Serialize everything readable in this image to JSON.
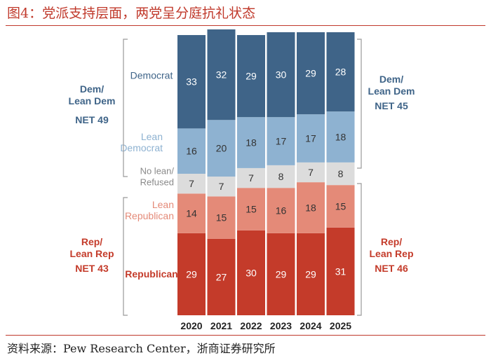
{
  "figure_title": "图4：党派支持层面，两党呈分庭抗礼状态",
  "source": "资料来源：Pew Research Center，浙商证券研究所",
  "colors": {
    "democrat": "#3f6488",
    "lean_democrat": "#8eb2d1",
    "no_lean": "#dcdcdc",
    "lean_republican": "#e48a78",
    "republican": "#c43b2a",
    "blue_text": "#3f6488",
    "red_text": "#c43b2a",
    "grey_text": "#8a8a8a",
    "rule": "#c0392b"
  },
  "chart_data": {
    "type": "bar",
    "stacked": true,
    "title": "",
    "categories": [
      "2020",
      "2021",
      "2022",
      "2023",
      "2024",
      "2025"
    ],
    "series": [
      {
        "name": "Republican",
        "values": [
          29,
          27,
          30,
          29,
          29,
          31
        ]
      },
      {
        "name": "Lean Republican",
        "values": [
          14,
          15,
          15,
          16,
          18,
          15
        ]
      },
      {
        "name": "No lean/ Refused",
        "values": [
          7,
          7,
          7,
          8,
          7,
          8
        ]
      },
      {
        "name": "Lean Democrat",
        "values": [
          16,
          20,
          18,
          17,
          17,
          18
        ]
      },
      {
        "name": "Democrat",
        "values": [
          33,
          32,
          29,
          30,
          29,
          28
        ]
      }
    ],
    "series_labels": {
      "Democrat": "Democrat",
      "Lean Democrat": [
        "Lean",
        "Democrat"
      ],
      "No lean/ Refused": [
        "No lean/",
        "Refused"
      ],
      "Lean Republican": [
        "Lean",
        "Republican"
      ],
      "Republican": "Republican"
    },
    "net_left": {
      "dem": {
        "label": [
          "Dem/",
          "Lean Dem"
        ],
        "net": "NET 49"
      },
      "rep": {
        "label": [
          "Rep/",
          "Lean Rep"
        ],
        "net": "NET 43"
      }
    },
    "net_right": {
      "dem": {
        "label": [
          "Dem/",
          "Lean Dem"
        ],
        "net": "NET 45"
      },
      "rep": {
        "label": [
          "Rep/",
          "Lean Rep"
        ],
        "net": "NET 46"
      }
    }
  }
}
